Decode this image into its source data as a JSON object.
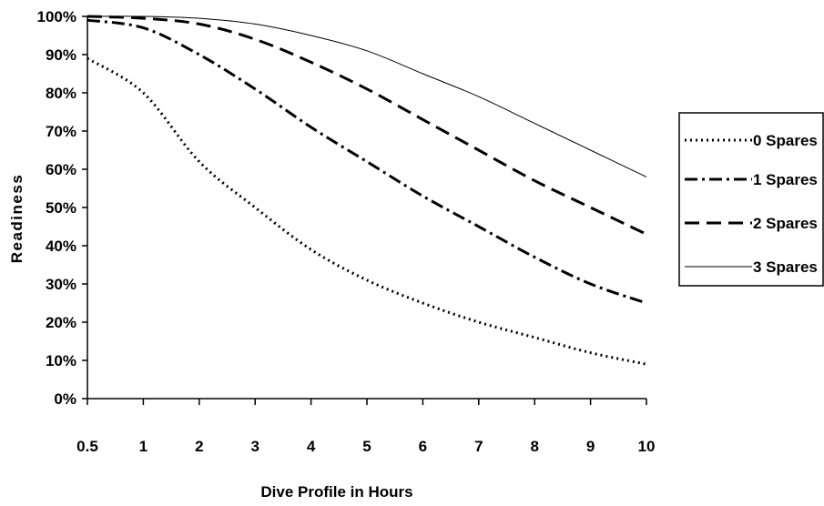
{
  "chart_data": {
    "type": "line",
    "title": "",
    "xlabel": "Dive Profile in Hours",
    "ylabel": "Readiness",
    "x": [
      0.5,
      1,
      2,
      3,
      4,
      5,
      6,
      7,
      8,
      9,
      10
    ],
    "x_tick_labels": [
      "0.5",
      "1",
      "2",
      "3",
      "4",
      "5",
      "6",
      "7",
      "8",
      "9",
      "10"
    ],
    "y_tick_labels": [
      "0%",
      "10%",
      "20%",
      "30%",
      "40%",
      "50%",
      "60%",
      "70%",
      "80%",
      "90%",
      "100%"
    ],
    "y_unit": "percent",
    "ylim": [
      0,
      100
    ],
    "x_scale": "categorical-evenly-spaced",
    "grid": false,
    "legend": "right",
    "series": [
      {
        "name": "0 Spares",
        "style": "dotted",
        "color": "#000000",
        "values": [
          89,
          80,
          62,
          50,
          39,
          31,
          25,
          20,
          16,
          12,
          9
        ]
      },
      {
        "name": "1 Spares",
        "style": "dash-dot",
        "color": "#000000",
        "values": [
          99,
          97,
          90,
          81,
          71,
          62,
          53,
          45,
          37,
          30,
          25
        ]
      },
      {
        "name": "2 Spares",
        "style": "dashed",
        "color": "#000000",
        "values": [
          100,
          99.5,
          98,
          94,
          88,
          81,
          73,
          65,
          57,
          50,
          43
        ]
      },
      {
        "name": "3 Spares",
        "style": "solid-thin",
        "color": "#000000",
        "values": [
          100,
          100,
          99.5,
          98,
          95,
          91,
          85,
          79,
          72,
          65,
          58
        ]
      }
    ]
  }
}
